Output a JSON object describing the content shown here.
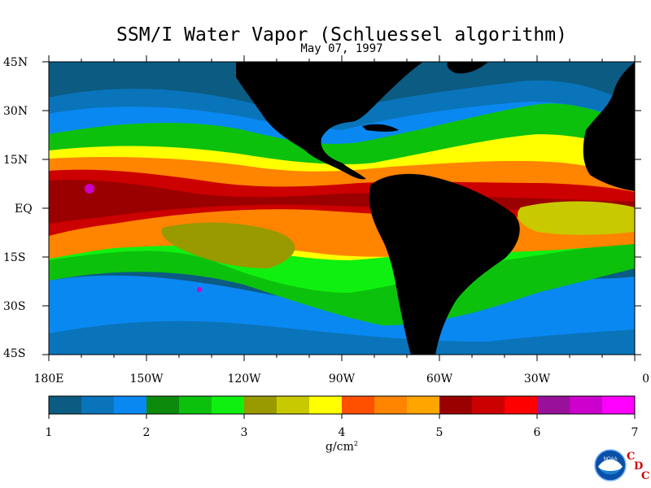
{
  "title": "SSM/I Water Vapor (Schluessel algorithm)",
  "subtitle": "May 07, 1997",
  "lat_labels": [
    "45N",
    "30N",
    "15N",
    "EQ",
    "15S",
    "30S",
    "45S"
  ],
  "lon_labels": [
    "180E",
    "150W",
    "120W",
    "90W",
    "60W",
    "30W",
    "0"
  ],
  "colorbar": {
    "labels": [
      "1",
      "2",
      "3",
      "4",
      "5",
      "6",
      "7"
    ],
    "units": "g/cm",
    "units_sup": "2",
    "colors": [
      "#0b5b82",
      "#0a74ba",
      "#0a88f2",
      "#0c8a0c",
      "#0cc10c",
      "#10f010",
      "#999900",
      "#c9c900",
      "#ffff00",
      "#ff5000",
      "#ff8400",
      "#ffa500",
      "#9a0000",
      "#cc0000",
      "#ff0000",
      "#99119a",
      "#cc00cc",
      "#ff00ff"
    ]
  },
  "map_colors": {
    "land": "#000000",
    "ocean_deep_blue": "#0b5b82",
    "ocean_blue": "#0a74ba",
    "ocean_light_blue": "#0a88f2",
    "green_dark": "#0c8a0c",
    "green": "#0cc10c",
    "green_bright": "#10f010",
    "olive": "#999900",
    "yellow_olive": "#c9c900",
    "yellow": "#ffff00",
    "orange_red": "#ff5000",
    "orange": "#ff8400",
    "orange_light": "#ffa500",
    "maroon": "#9a0000",
    "red_dark": "#cc0000",
    "red": "#ff0000",
    "magenta": "#cc00cc"
  },
  "logo": {
    "label": "NOAA",
    "letters": [
      "C",
      "D",
      "C"
    ]
  }
}
